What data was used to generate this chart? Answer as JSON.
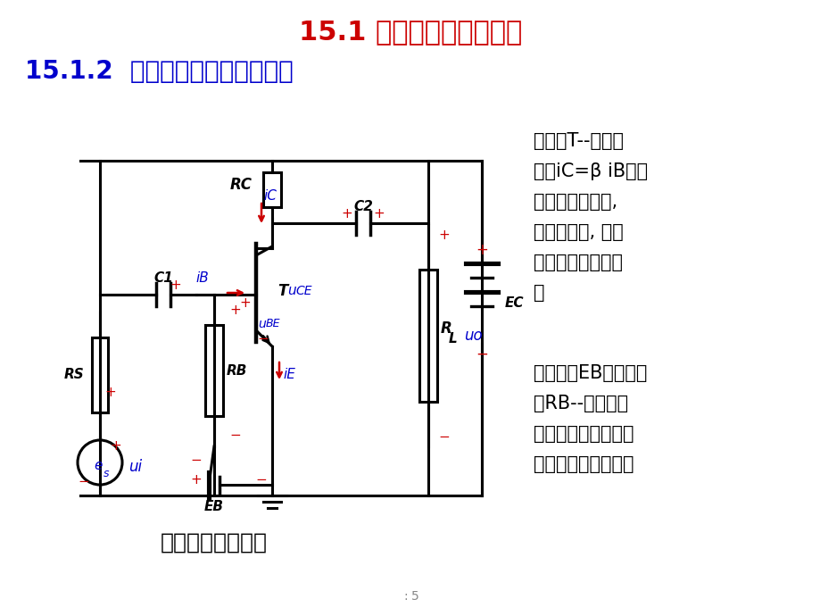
{
  "title1": "15.1 基本放大电路的组成",
  "title2": "15.1.2  基本放大电路各元件作用",
  "subtitle": "共发射极基本电路",
  "text_right1_lines": [
    "晶体管T--放大元",
    "件，iC=β iB。要",
    "保证发射结正偏,",
    "集电结反偏, 使晶",
    "体管工作在放大区",
    "。"
  ],
  "text_right2_lines": [
    "基极电源EB与基极电",
    "阻RB--使发射结",
    "处于正偏，并提供大",
    "小适当的基极电流。"
  ],
  "bg_color": "#ffffff",
  "title1_color": "#cc0000",
  "title2_color": "#0000cc",
  "black": "#000000",
  "blue": "#0000cc",
  "red": "#cc0000",
  "page_num": "5"
}
